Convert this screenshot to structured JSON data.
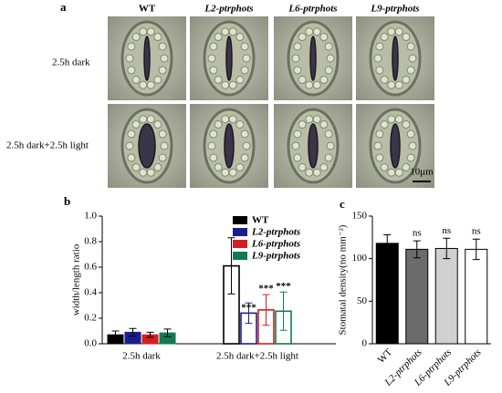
{
  "panel_a": {
    "label": "a",
    "columns": [
      "WT",
      "L2-ptrphots",
      "L6-ptrphots",
      "L9-ptrphots"
    ],
    "rows": [
      "2.5h dark",
      "2.5h dark+2.5h light"
    ],
    "scale_bar": "10μm"
  },
  "chart_data": [
    {
      "type": "grouped-bar",
      "label": "b",
      "y_label": "width/length ratio",
      "categories": [
        "2.5h dark",
        "2.5h dark+2.5h light"
      ],
      "filled": [
        true,
        false
      ],
      "series": [
        {
          "name": "WT",
          "color": "#000000",
          "values": [
            0.07,
            0.61
          ],
          "errors": [
            0.03,
            0.22
          ],
          "annotations": [
            null,
            null
          ]
        },
        {
          "name": "L2-ptrphots",
          "color": "#1a1f8c",
          "values": [
            0.09,
            0.24
          ],
          "errors": [
            0.03,
            0.08
          ],
          "annotations": [
            null,
            "***"
          ]
        },
        {
          "name": "L6-ptrphots",
          "color": "#d21f1f",
          "values": [
            0.07,
            0.265
          ],
          "errors": [
            0.02,
            0.12
          ],
          "annotations": [
            null,
            "***"
          ]
        },
        {
          "name": "L9-ptrphots",
          "color": "#127a55",
          "values": [
            0.085,
            0.255
          ],
          "errors": [
            0.03,
            0.15
          ],
          "annotations": [
            null,
            "***"
          ]
        }
      ],
      "ylim": [
        0,
        1.0
      ],
      "yticks": [
        {
          "value": 0,
          "label": "0.0"
        },
        0.2,
        0.4,
        0.6,
        0.8,
        {
          "value": 1.0,
          "label": "1.0"
        }
      ]
    },
    {
      "type": "bar",
      "label": "c",
      "y_label": "Stomatal density(no mm⁻²)",
      "categories": [
        "WT",
        "L2-ptrphots",
        "L6-ptrphots",
        "L9-ptrphots"
      ],
      "values": [
        118,
        111,
        112,
        111
      ],
      "errors": [
        10,
        10,
        12,
        12
      ],
      "annotations": [
        null,
        "ns",
        "ns",
        "ns"
      ],
      "colors": [
        "#000000",
        "#6b6b6b",
        "#d0d0d0",
        "#ffffff"
      ],
      "ylim": [
        0,
        150
      ],
      "yticks": [
        0,
        50,
        100,
        150
      ]
    }
  ]
}
